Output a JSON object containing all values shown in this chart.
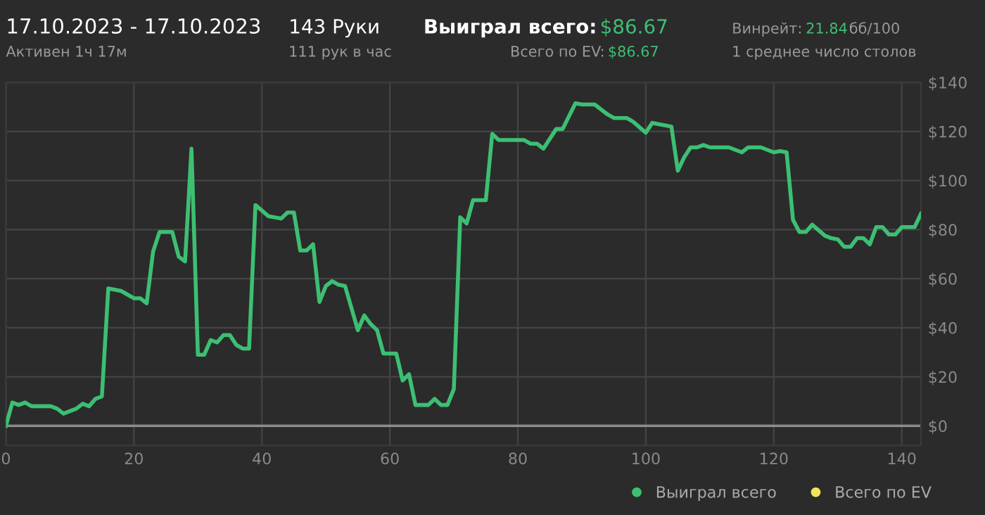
{
  "chart_data": {
    "type": "line",
    "title": "17.10.2023 - 17.10.2023",
    "subtitle": "Активен 1ч 17м",
    "annotations": [
      "143 Руки",
      "111 рук в час",
      "Выиграл всего:",
      "$86.67",
      "Всего по EV:",
      "$86.67",
      "Винрейт:",
      "21.84",
      "бб/100",
      "1 среднее число столов"
    ],
    "x": [
      0,
      1,
      2,
      3,
      4,
      5,
      7,
      8,
      9,
      11,
      12,
      13,
      14,
      15,
      16,
      18,
      20,
      21,
      22,
      23,
      24,
      26,
      27,
      28,
      29,
      30,
      31,
      32,
      33,
      34,
      35,
      36,
      37,
      38,
      39,
      41,
      43,
      44,
      45,
      46,
      47,
      48,
      49,
      50,
      51,
      52,
      53,
      55,
      56,
      57,
      58,
      59,
      61,
      62,
      63,
      64,
      66,
      67,
      68,
      69,
      70,
      71,
      72,
      73,
      75,
      76,
      77,
      81,
      82,
      83,
      84,
      86,
      87,
      89,
      90,
      92,
      94,
      95,
      97,
      98,
      100,
      101,
      102,
      104,
      105,
      106,
      107,
      108,
      109,
      110,
      113,
      115,
      116,
      118,
      120,
      121,
      122,
      123,
      124,
      125,
      126,
      128,
      129,
      130,
      131,
      132,
      133,
      134,
      135,
      136,
      137,
      138,
      139,
      140,
      142,
      143
    ],
    "series": [
      {
        "name": "Выиграл всего",
        "color": "#3dbf73",
        "values": [
          0,
          9.5,
          8.5,
          9.5,
          8,
          8,
          8,
          7,
          5,
          7,
          9,
          8,
          11,
          12,
          56,
          55,
          52,
          52,
          50,
          71,
          79,
          79,
          69,
          67,
          113,
          29,
          29,
          35,
          34,
          37,
          37,
          33,
          31.5,
          31.5,
          90,
          85.5,
          84.5,
          87,
          87,
          71.5,
          71.5,
          74,
          50.5,
          57,
          59,
          57.5,
          57,
          39,
          45,
          41.5,
          39,
          29.5,
          29.5,
          18.5,
          21,
          8.5,
          8.5,
          11,
          8.5,
          8.5,
          15,
          85,
          82.5,
          92,
          92,
          119,
          116.5,
          116.5,
          115,
          115,
          113,
          121,
          121,
          131.5,
          131,
          131,
          127,
          125.5,
          125.5,
          124,
          119.5,
          123.5,
          123,
          122,
          104,
          109.5,
          113.5,
          113.5,
          114.5,
          113.5,
          113.5,
          111.5,
          113.5,
          113.5,
          111.5,
          112,
          111.5,
          84,
          79,
          79,
          82,
          77.5,
          76.5,
          76,
          73,
          73,
          76.5,
          76.5,
          74,
          81,
          81,
          78,
          78,
          81,
          81,
          86.5
        ]
      },
      {
        "name": "Всего по EV",
        "color": "#f0e65a",
        "values": [
          null,
          null,
          null,
          null,
          null,
          null,
          null,
          null,
          null,
          null,
          null,
          null,
          null,
          null,
          null,
          null,
          null,
          null,
          null,
          null,
          null,
          null,
          null,
          null,
          null,
          null,
          null,
          null,
          null,
          null,
          null,
          null,
          null,
          null,
          null,
          null,
          null,
          null,
          null,
          null,
          null,
          null,
          null,
          null,
          null,
          null,
          null,
          null,
          null,
          null,
          null,
          null,
          null,
          null,
          null,
          null,
          null,
          null,
          null,
          null,
          null,
          null,
          null,
          null,
          null,
          null,
          null,
          null,
          null,
          null,
          null,
          null,
          null,
          null,
          null,
          null,
          null,
          null,
          null,
          null,
          null,
          null,
          null,
          null,
          null,
          null,
          null,
          null,
          null,
          null,
          null,
          null,
          null,
          null,
          null,
          null,
          null,
          null,
          null,
          null,
          null,
          null,
          null,
          null,
          null,
          null,
          null,
          null,
          null,
          null,
          null,
          null,
          null,
          null,
          null,
          null
        ]
      }
    ],
    "xlim": [
      0,
      143
    ],
    "xticks": [
      0,
      20,
      40,
      60,
      80,
      100,
      120,
      140
    ],
    "ylim": [
      -8,
      140
    ],
    "yticks": [
      {
        "value": 0,
        "label": "$0"
      },
      {
        "value": 20,
        "label": "$20"
      },
      {
        "value": 40,
        "label": "$40"
      },
      {
        "value": 60,
        "label": "$60"
      },
      {
        "value": 80,
        "label": "$80"
      },
      {
        "value": 100,
        "label": "$100"
      },
      {
        "value": 120,
        "label": "$120"
      },
      {
        "value": 140,
        "label": "$140"
      }
    ],
    "ref_lines": [
      {
        "axis": "y",
        "value": 0,
        "color": "#8c8c8c"
      }
    ],
    "grid": true,
    "legend": "bottom right",
    "marker": "none",
    "line_style": "solid"
  }
}
